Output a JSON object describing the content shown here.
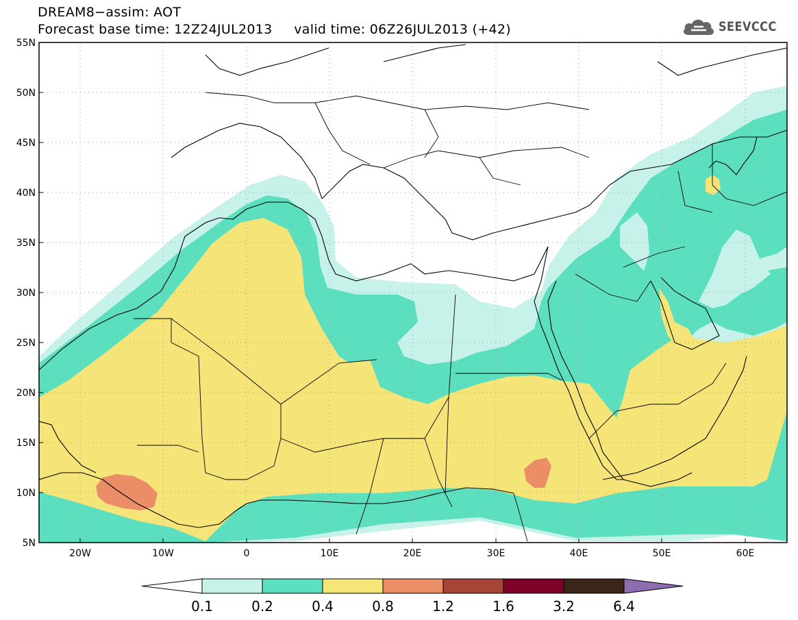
{
  "header": {
    "line1": "DREAM8−assim: AOT",
    "line2": "Forecast base time: 12Z24JUL2013     valid time: 06Z26JUL2013 (+42)"
  },
  "logo": {
    "text": "SEEVCCC",
    "icon": "cloud-icon"
  },
  "map": {
    "lat_labels": [
      "55N",
      "50N",
      "45N",
      "40N",
      "35N",
      "30N",
      "25N",
      "20N",
      "15N",
      "10N",
      "5N"
    ],
    "lon_labels": [
      "20W",
      "10W",
      "0",
      "10E",
      "20E",
      "30E",
      "40E",
      "50E",
      "60E"
    ],
    "lon_range": [
      -25,
      65
    ],
    "lat_range": [
      5,
      55
    ],
    "grid": "dotted"
  },
  "colorbar": {
    "colors": [
      "#ffffff",
      "#c7f2ea",
      "#5cdfbe",
      "#f5e477",
      "#eb8d66",
      "#a64437",
      "#7d0027",
      "#3a2518",
      "#8d6db0"
    ],
    "tick_labels": [
      "0.1",
      "0.2",
      "0.4",
      "0.8",
      "1.2",
      "1.6",
      "3.2",
      "6.4"
    ]
  }
}
